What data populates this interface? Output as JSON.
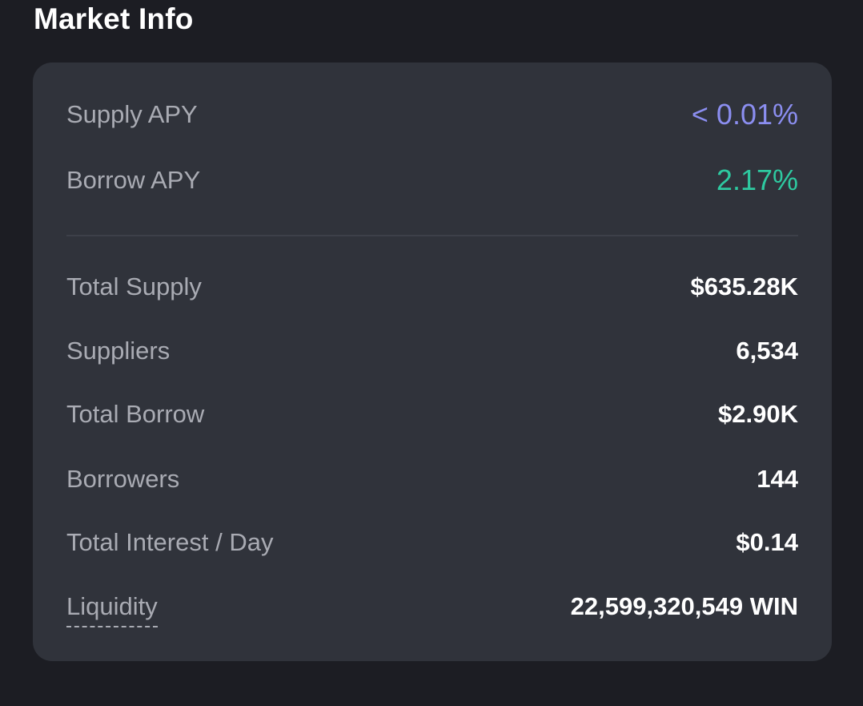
{
  "header": {
    "title": "Market Info"
  },
  "colors": {
    "supply_apy": "#8b8ef0",
    "borrow_apy": "#2ec9a0"
  },
  "apy": {
    "supply_label": "Supply APY",
    "supply_value": "< 0.01%",
    "borrow_label": "Borrow APY",
    "borrow_value": "2.17%"
  },
  "stats": [
    {
      "label": "Total Supply",
      "value": "$635.28K"
    },
    {
      "label": "Suppliers",
      "value": "6,534"
    },
    {
      "label": "Total Borrow",
      "value": "$2.90K"
    },
    {
      "label": "Borrowers",
      "value": "144"
    },
    {
      "label": "Total Interest / Day",
      "value": "$0.14"
    },
    {
      "label": "Liquidity",
      "value": "22,599,320,549 WIN"
    }
  ]
}
